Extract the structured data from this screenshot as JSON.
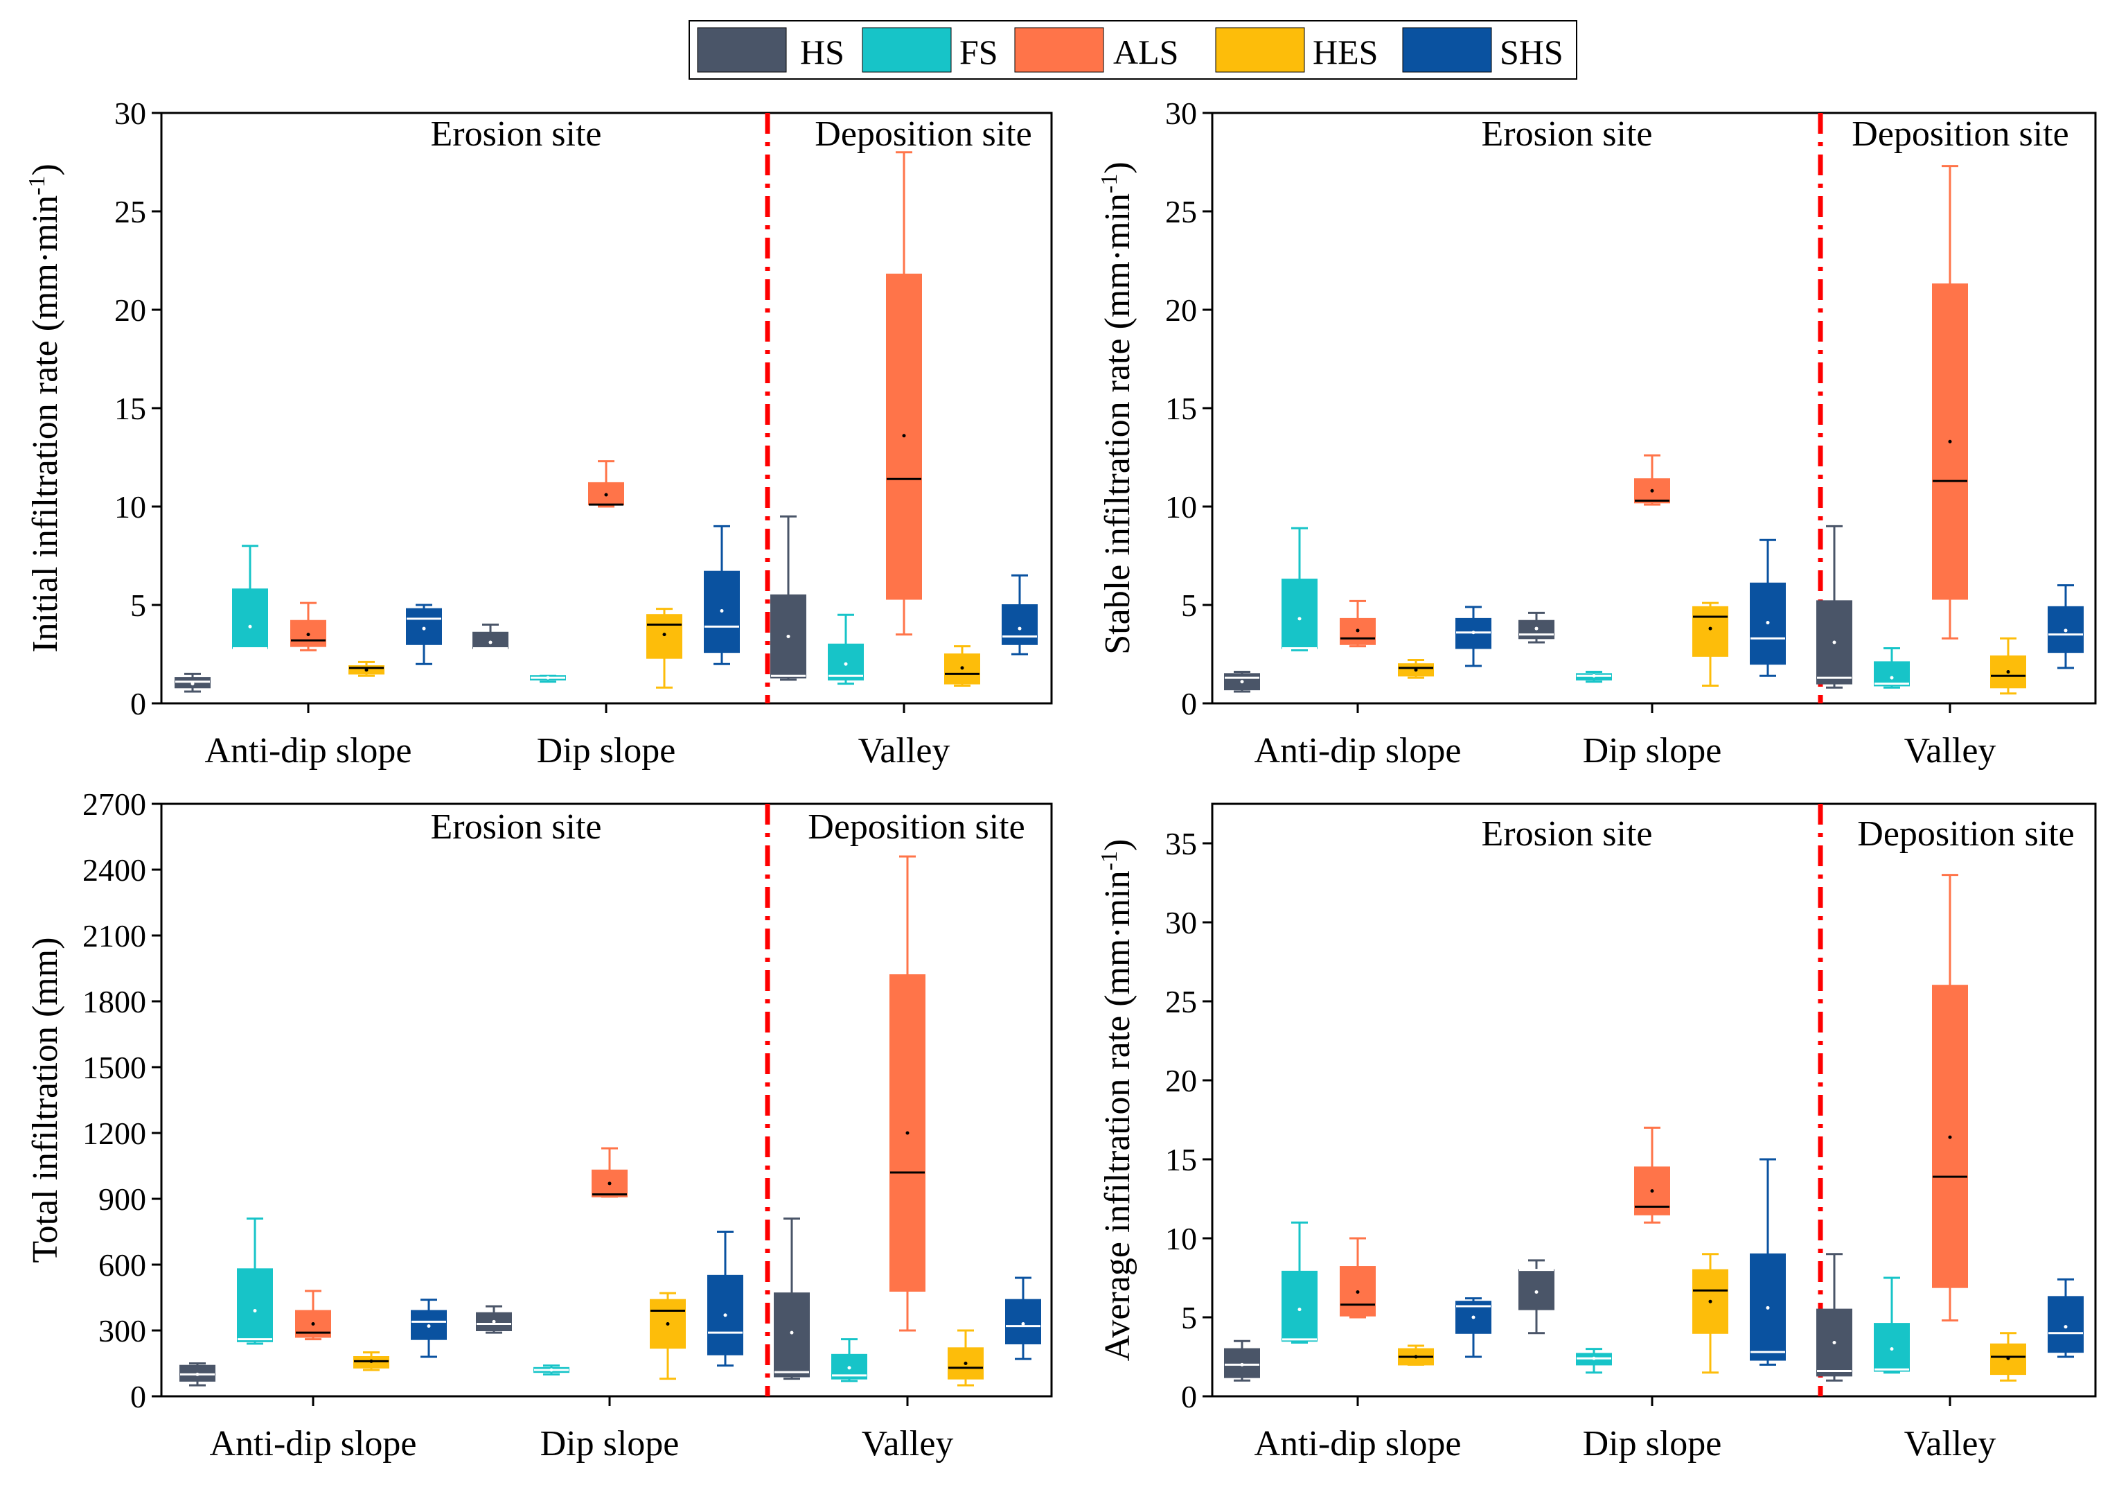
{
  "colors": {
    "HS": "#4a5568",
    "FS": "#17c4c8",
    "ALS": "#ff7449",
    "HES": "#fdbd0a",
    "SHS": "#0a52a0",
    "divider": "#ff0000"
  },
  "legend": {
    "items": [
      {
        "key": "HS",
        "label": "HS"
      },
      {
        "key": "FS",
        "label": "FS"
      },
      {
        "key": "ALS",
        "label": "ALS"
      },
      {
        "key": "HES",
        "label": "HES"
      },
      {
        "key": "SHS",
        "label": "SHS"
      }
    ]
  },
  "chart_data": [
    {
      "type": "box",
      "ylabel": "Initial infiltration rate (mm·min",
      "ylabel_sup": "-1",
      "ylabel_close": ")",
      "ylim": [
        0,
        30
      ],
      "yticks": [
        "0",
        "5",
        "10",
        "15",
        "20",
        "25",
        "30"
      ],
      "categories": [
        "Anti-dip slope",
        "Dip slope",
        "Valley"
      ],
      "region_labels": [
        "Erosion site",
        "Deposition site"
      ],
      "series": [
        {
          "name": "HS",
          "boxes": [
            {
              "min": 0.6,
              "q1": 0.8,
              "median": 1.1,
              "q3": 1.3,
              "max": 1.5,
              "mean": 1.0
            },
            {
              "min": 2.8,
              "q1": 2.8,
              "median": 2.8,
              "q3": 3.6,
              "max": 4.0,
              "mean": 3.1
            },
            {
              "min": 1.2,
              "q1": 1.3,
              "median": 1.4,
              "q3": 5.5,
              "max": 9.5,
              "mean": 3.4
            }
          ]
        },
        {
          "name": "FS",
          "boxes": [
            {
              "min": 2.8,
              "q1": 2.8,
              "median": 2.8,
              "q3": 5.8,
              "max": 8.0,
              "mean": 3.9
            },
            {
              "min": 1.1,
              "q1": 1.2,
              "median": 1.3,
              "q3": 1.4,
              "max": 1.4,
              "mean": 1.3
            },
            {
              "min": 1.0,
              "q1": 1.2,
              "median": 1.4,
              "q3": 3.0,
              "max": 4.5,
              "mean": 2.0
            }
          ]
        },
        {
          "name": "ALS",
          "boxes": [
            {
              "min": 2.7,
              "q1": 2.9,
              "median": 3.2,
              "q3": 4.2,
              "max": 5.1,
              "mean": 3.5
            },
            {
              "min": 10.0,
              "q1": 10.1,
              "median": 10.1,
              "q3": 11.2,
              "max": 12.3,
              "mean": 10.6
            },
            {
              "min": 3.5,
              "q1": 5.3,
              "median": 11.4,
              "q3": 21.8,
              "max": 28.0,
              "mean": 13.6
            }
          ]
        },
        {
          "name": "HES",
          "boxes": [
            {
              "min": 1.4,
              "q1": 1.5,
              "median": 1.8,
              "q3": 1.9,
              "max": 2.1,
              "mean": 1.7
            },
            {
              "min": 0.8,
              "q1": 2.3,
              "median": 4.0,
              "q3": 4.5,
              "max": 4.8,
              "mean": 3.5
            },
            {
              "min": 0.9,
              "q1": 1.0,
              "median": 1.5,
              "q3": 2.5,
              "max": 2.9,
              "mean": 1.8
            }
          ]
        },
        {
          "name": "SHS",
          "boxes": [
            {
              "min": 2.0,
              "q1": 3.0,
              "median": 4.3,
              "q3": 4.8,
              "max": 5.0,
              "mean": 3.8
            },
            {
              "min": 2.0,
              "q1": 2.6,
              "median": 3.9,
              "q3": 6.7,
              "max": 9.0,
              "mean": 4.7
            },
            {
              "min": 2.5,
              "q1": 3.0,
              "median": 3.4,
              "q3": 5.0,
              "max": 6.5,
              "mean": 3.8
            }
          ]
        }
      ]
    },
    {
      "type": "box",
      "ylabel": "Stable infiltration rate (mm·min",
      "ylabel_sup": "-1",
      "ylabel_close": ")",
      "ylim": [
        0,
        30
      ],
      "yticks": [
        "0",
        "5",
        "10",
        "15",
        "20",
        "25",
        "30"
      ],
      "categories": [
        "Anti-dip slope",
        "Dip slope",
        "Valley"
      ],
      "region_labels": [
        "Erosion site",
        "Deposition site"
      ],
      "series": [
        {
          "name": "HS",
          "boxes": [
            {
              "min": 0.6,
              "q1": 0.7,
              "median": 1.3,
              "q3": 1.5,
              "max": 1.6,
              "mean": 1.1
            },
            {
              "min": 3.1,
              "q1": 3.3,
              "median": 3.5,
              "q3": 4.2,
              "max": 4.6,
              "mean": 3.8
            },
            {
              "min": 0.8,
              "q1": 1.0,
              "median": 1.3,
              "q3": 5.2,
              "max": 9.0,
              "mean": 3.1
            }
          ]
        },
        {
          "name": "FS",
          "boxes": [
            {
              "min": 2.7,
              "q1": 2.8,
              "median": 2.8,
              "q3": 6.3,
              "max": 8.9,
              "mean": 4.3
            },
            {
              "min": 1.1,
              "q1": 1.2,
              "median": 1.4,
              "q3": 1.5,
              "max": 1.6,
              "mean": 1.4
            },
            {
              "min": 0.8,
              "q1": 0.9,
              "median": 1.0,
              "q3": 2.1,
              "max": 2.8,
              "mean": 1.3
            }
          ]
        },
        {
          "name": "ALS",
          "boxes": [
            {
              "min": 2.9,
              "q1": 3.0,
              "median": 3.3,
              "q3": 4.3,
              "max": 5.2,
              "mean": 3.7
            },
            {
              "min": 10.1,
              "q1": 10.2,
              "median": 10.3,
              "q3": 11.4,
              "max": 12.6,
              "mean": 10.8
            },
            {
              "min": 3.3,
              "q1": 5.3,
              "median": 11.3,
              "q3": 21.3,
              "max": 27.3,
              "mean": 13.3
            }
          ]
        },
        {
          "name": "HES",
          "boxes": [
            {
              "min": 1.3,
              "q1": 1.4,
              "median": 1.8,
              "q3": 2.0,
              "max": 2.2,
              "mean": 1.7
            },
            {
              "min": 0.9,
              "q1": 2.4,
              "median": 4.4,
              "q3": 4.9,
              "max": 5.1,
              "mean": 3.8
            },
            {
              "min": 0.5,
              "q1": 0.8,
              "median": 1.4,
              "q3": 2.4,
              "max": 3.3,
              "mean": 1.6
            }
          ]
        },
        {
          "name": "SHS",
          "boxes": [
            {
              "min": 1.9,
              "q1": 2.8,
              "median": 3.6,
              "q3": 4.3,
              "max": 4.9,
              "mean": 3.6
            },
            {
              "min": 1.4,
              "q1": 2.0,
              "median": 3.3,
              "q3": 6.1,
              "max": 8.3,
              "mean": 4.1
            },
            {
              "min": 1.8,
              "q1": 2.6,
              "median": 3.5,
              "q3": 4.9,
              "max": 6.0,
              "mean": 3.7
            }
          ]
        }
      ]
    },
    {
      "type": "box",
      "ylabel": "Total infiltration  (mm)",
      "ylabel_sup": "",
      "ylabel_close": "",
      "ylim": [
        0,
        2700
      ],
      "yticks": [
        "0",
        "300",
        "600",
        "900",
        "1200",
        "1500",
        "1800",
        "2100",
        "2400",
        "2700"
      ],
      "categories": [
        "Anti-dip slope",
        "Dip slope",
        "Valley"
      ],
      "region_labels": [
        "Erosion site",
        "Deposition site"
      ],
      "series": [
        {
          "name": "HS",
          "boxes": [
            {
              "min": 50,
              "q1": 70,
              "median": 100,
              "q3": 140,
              "max": 150,
              "mean": 100
            },
            {
              "min": 290,
              "q1": 300,
              "median": 330,
              "q3": 380,
              "max": 410,
              "mean": 340
            },
            {
              "min": 80,
              "q1": 90,
              "median": 110,
              "q3": 470,
              "max": 810,
              "mean": 290
            }
          ]
        },
        {
          "name": "FS",
          "boxes": [
            {
              "min": 240,
              "q1": 250,
              "median": 260,
              "q3": 580,
              "max": 810,
              "mean": 390
            },
            {
              "min": 100,
              "q1": 110,
              "median": 120,
              "q3": 130,
              "max": 140,
              "mean": 120
            },
            {
              "min": 70,
              "q1": 80,
              "median": 95,
              "q3": 190,
              "max": 260,
              "mean": 130
            }
          ]
        },
        {
          "name": "ALS",
          "boxes": [
            {
              "min": 260,
              "q1": 270,
              "median": 290,
              "q3": 390,
              "max": 480,
              "mean": 330
            },
            {
              "min": 910,
              "q1": 910,
              "median": 920,
              "q3": 1030,
              "max": 1130,
              "mean": 970
            },
            {
              "min": 300,
              "q1": 480,
              "median": 1020,
              "q3": 1920,
              "max": 2460,
              "mean": 1200
            }
          ]
        },
        {
          "name": "HES",
          "boxes": [
            {
              "min": 120,
              "q1": 130,
              "median": 160,
              "q3": 180,
              "max": 200,
              "mean": 160
            },
            {
              "min": 80,
              "q1": 220,
              "median": 390,
              "q3": 440,
              "max": 470,
              "mean": 330
            },
            {
              "min": 50,
              "q1": 80,
              "median": 130,
              "q3": 220,
              "max": 300,
              "mean": 150
            }
          ]
        },
        {
          "name": "SHS",
          "boxes": [
            {
              "min": 180,
              "q1": 260,
              "median": 340,
              "q3": 390,
              "max": 440,
              "mean": 320
            },
            {
              "min": 140,
              "q1": 190,
              "median": 290,
              "q3": 550,
              "max": 750,
              "mean": 370
            },
            {
              "min": 170,
              "q1": 240,
              "median": 320,
              "q3": 440,
              "max": 540,
              "mean": 330
            }
          ]
        }
      ]
    },
    {
      "type": "box",
      "ylabel": "Average infiltration rate (mm·min",
      "ylabel_sup": "-1",
      "ylabel_close": ")",
      "ylim": [
        0,
        37.5
      ],
      "yticks": [
        "0",
        "5",
        "10",
        "15",
        "20",
        "25",
        "30",
        "35"
      ],
      "categories": [
        "Anti-dip slope",
        "Dip slope",
        "Valley"
      ],
      "region_labels": [
        "Erosion site",
        "Deposition site"
      ],
      "series": [
        {
          "name": "HS",
          "boxes": [
            {
              "min": 1.0,
              "q1": 1.2,
              "median": 2.0,
              "q3": 3.0,
              "max": 3.5,
              "mean": 2.0
            },
            {
              "min": 4.0,
              "q1": 5.5,
              "median": 8.0,
              "q3": 8.0,
              "max": 8.6,
              "mean": 6.6
            },
            {
              "min": 1.0,
              "q1": 1.3,
              "median": 1.6,
              "q3": 5.5,
              "max": 9.0,
              "mean": 3.4
            }
          ]
        },
        {
          "name": "FS",
          "boxes": [
            {
              "min": 3.4,
              "q1": 3.5,
              "median": 3.6,
              "q3": 7.9,
              "max": 11.0,
              "mean": 5.5
            },
            {
              "min": 1.5,
              "q1": 2.0,
              "median": 2.4,
              "q3": 2.7,
              "max": 3.0,
              "mean": 2.4
            },
            {
              "min": 1.5,
              "q1": 1.6,
              "median": 1.7,
              "q3": 4.6,
              "max": 7.5,
              "mean": 3.0
            }
          ]
        },
        {
          "name": "ALS",
          "boxes": [
            {
              "min": 5.0,
              "q1": 5.1,
              "median": 5.8,
              "q3": 8.2,
              "max": 10.0,
              "mean": 6.6
            },
            {
              "min": 11.0,
              "q1": 11.5,
              "median": 12.0,
              "q3": 14.5,
              "max": 17.0,
              "mean": 13.0
            },
            {
              "min": 4.8,
              "q1": 6.9,
              "median": 13.9,
              "q3": 26.0,
              "max": 33.0,
              "mean": 16.4
            }
          ]
        },
        {
          "name": "HES",
          "boxes": [
            {
              "min": 2.0,
              "q1": 2.0,
              "median": 2.5,
              "q3": 3.0,
              "max": 3.2,
              "mean": 2.5
            },
            {
              "min": 1.5,
              "q1": 4.0,
              "median": 6.7,
              "q3": 8.0,
              "max": 9.0,
              "mean": 6.0
            },
            {
              "min": 1.0,
              "q1": 1.4,
              "median": 2.5,
              "q3": 3.3,
              "max": 4.0,
              "mean": 2.4
            }
          ]
        },
        {
          "name": "SHS",
          "boxes": [
            {
              "min": 2.5,
              "q1": 4.0,
              "median": 5.7,
              "q3": 6.0,
              "max": 6.2,
              "mean": 5.0
            },
            {
              "min": 2.0,
              "q1": 2.3,
              "median": 2.8,
              "q3": 9.0,
              "max": 15.0,
              "mean": 5.6
            },
            {
              "min": 2.5,
              "q1": 2.8,
              "median": 4.0,
              "q3": 6.3,
              "max": 7.4,
              "mean": 4.4
            }
          ]
        }
      ]
    }
  ]
}
